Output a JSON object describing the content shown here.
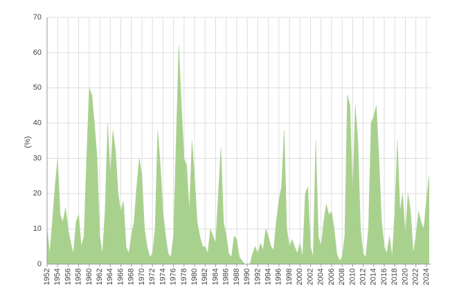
{
  "chart_data": {
    "type": "area",
    "ylabel": "(%)",
    "color": "#a9d18e",
    "grid": true,
    "xlim": [
      1952,
      2024.8
    ],
    "ylim": [
      0,
      70
    ],
    "yticks": [
      0,
      10,
      20,
      30,
      40,
      50,
      60,
      70
    ],
    "xticks": [
      1952,
      1954,
      1956,
      1958,
      1960,
      1962,
      1964,
      1966,
      1968,
      1970,
      1972,
      1974,
      1976,
      1978,
      1980,
      1982,
      1984,
      1986,
      1988,
      1990,
      1992,
      1994,
      1996,
      1998,
      2000,
      2002,
      2004,
      2006,
      2008,
      2010,
      2012,
      2014,
      2016,
      2018,
      2020,
      2022,
      2024
    ],
    "x": [
      1952,
      1952.5,
      1953,
      1953.5,
      1954,
      1954.5,
      1955,
      1955.5,
      1956,
      1956.5,
      1957,
      1957.5,
      1958,
      1958.5,
      1959,
      1959.5,
      1960,
      1960.5,
      1961,
      1961.5,
      1962,
      1962.5,
      1963,
      1963.5,
      1964,
      1964.5,
      1965,
      1965.5,
      1966,
      1966.5,
      1967,
      1967.5,
      1968,
      1968.5,
      1969,
      1969.5,
      1970,
      1970.5,
      1971,
      1971.5,
      1972,
      1972.5,
      1973,
      1973.5,
      1974,
      1974.5,
      1975,
      1975.5,
      1976,
      1976.5,
      1977,
      1977.5,
      1978,
      1978.5,
      1979,
      1979.5,
      1980,
      1980.5,
      1981,
      1981.5,
      1982,
      1982.5,
      1983,
      1983.5,
      1984,
      1984.5,
      1985,
      1985.5,
      1986,
      1986.5,
      1987,
      1987.5,
      1988,
      1988.5,
      1989,
      1989.5,
      1990,
      1990.5,
      1991,
      1991.5,
      1992,
      1992.5,
      1993,
      1993.5,
      1994,
      1994.5,
      1995,
      1995.5,
      1996,
      1996.5,
      1997,
      1997.5,
      1998,
      1998.5,
      1999,
      1999.5,
      2000,
      2000.5,
      2001,
      2001.5,
      2002,
      2002.5,
      2003,
      2003.5,
      2004,
      2004.5,
      2005,
      2005.5,
      2006,
      2006.5,
      2007,
      2007.5,
      2008,
      2008.5,
      2009,
      2009.5,
      2010,
      2010.5,
      2011,
      2011.5,
      2012,
      2012.5,
      2013,
      2013.5,
      2014,
      2014.5,
      2015,
      2015.5,
      2016,
      2016.5,
      2017,
      2017.5,
      2018,
      2018.5,
      2019,
      2019.5,
      2020,
      2020.5,
      2021,
      2021.5,
      2022,
      2022.5,
      2023,
      2023.5,
      2024,
      2024.5
    ],
    "values": [
      10,
      3,
      12,
      22,
      30,
      14,
      12,
      16,
      10,
      6,
      3,
      12,
      14,
      5,
      8,
      30,
      50,
      48,
      40,
      30,
      8,
      3,
      15,
      40,
      25,
      38,
      32,
      20,
      15,
      18,
      5,
      3,
      8,
      12,
      22,
      30,
      25,
      10,
      5,
      2,
      3,
      10,
      38,
      28,
      15,
      8,
      3,
      2,
      8,
      35,
      62,
      45,
      30,
      28,
      15,
      35,
      25,
      12,
      8,
      5,
      5,
      3,
      10,
      8,
      6,
      20,
      33,
      12,
      8,
      3,
      2,
      8,
      7,
      2,
      1,
      0,
      0,
      0,
      3,
      5,
      3,
      6,
      4,
      10,
      8,
      5,
      4,
      12,
      18,
      22,
      38,
      10,
      5,
      7,
      5,
      3,
      6,
      2,
      20,
      22,
      5,
      2,
      35,
      8,
      5,
      12,
      17,
      14,
      15,
      10,
      3,
      1,
      2,
      8,
      48,
      45,
      20,
      45,
      35,
      10,
      3,
      2,
      10,
      40,
      42,
      45,
      30,
      12,
      5,
      3,
      8,
      2,
      15,
      35,
      15,
      20,
      8,
      20,
      15,
      3,
      8,
      15,
      12,
      10,
      18,
      25
    ]
  }
}
